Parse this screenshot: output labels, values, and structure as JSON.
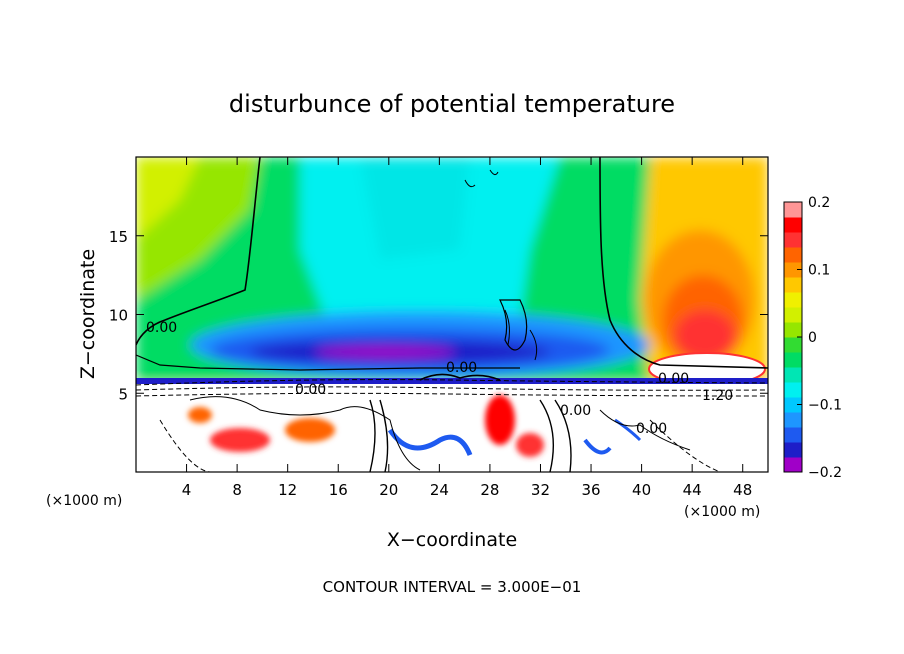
{
  "chart_data": {
    "type": "heatmap",
    "title": "disturbunce of potential temperature",
    "xlabel": "X−coordinate",
    "ylabel": "Z−coordinate",
    "x_unit": "(×1000 m)",
    "y_unit": "(×1000 m)",
    "xlim": [
      0,
      50
    ],
    "ylim": [
      0,
      20
    ],
    "x_ticks": [
      "4",
      "8",
      "12",
      "16",
      "20",
      "24",
      "28",
      "32",
      "36",
      "40",
      "44",
      "48"
    ],
    "y_ticks": [
      "5",
      "10",
      "15"
    ],
    "colorbar": {
      "range": [
        -0.2,
        0.2
      ],
      "ticks": [
        "0.2",
        "0.1",
        "0",
        "−0.1",
        "−0.2"
      ],
      "colors": [
        "#a000c8",
        "#1e1ec8",
        "#1e5af0",
        "#1e96ff",
        "#00c8ff",
        "#00f0f0",
        "#00e6b4",
        "#00dc64",
        "#32dc32",
        "#96e600",
        "#d2f000",
        "#f0f000",
        "#ffc800",
        "#ff9600",
        "#ff6400",
        "#ff3232",
        "#ff0000",
        "#ff9696"
      ]
    },
    "contour_labels": [
      "0.00",
      "0.00",
      "0.00",
      "0.00",
      "0.00",
      "1.20",
      "0.00"
    ],
    "contour_interval": "CONTOUR INTERVAL = 3.000E−01"
  }
}
